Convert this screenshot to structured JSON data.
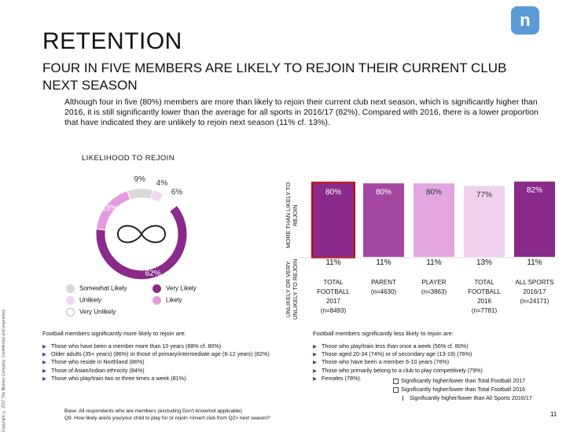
{
  "logo_glyph": "n",
  "title": "RETENTION",
  "subtitle": "FOUR IN FIVE MEMBERS ARE LIKELY TO REJOIN THEIR CURRENT CLUB NEXT SEASON",
  "intro": "Although four in five (80%) members are more than likely to rejoin their current club next season, which is significantly higher than 2016, it is still significantly lower than the average for all sports in 2016/17 (82%). Compared with 2016, there is a lower proportion that have indicated they are unlikely to rejoin next season (11% cf. 13%).",
  "copyright": "Copyright © 2017 The Nielsen Company. Confidential and proprietary.",
  "colors": {
    "very_likely": "#8a2a8a",
    "likely": "#e39be0",
    "somewhat_likely": "#d9d9d9",
    "unlikely": "#f2d7f1",
    "very_unlikely": "#ffffff",
    "highlight": "#c00000",
    "sig_low": "#c00000",
    "sig_high": "#4f7f3f"
  },
  "chart_data": [
    {
      "type": "pie",
      "title": "LIKELIHOOD TO REJOIN",
      "donut": true,
      "slices": [
        {
          "label": "Very Likely",
          "value": 62,
          "display": "62%"
        },
        {
          "label": "Likely",
          "value": 18,
          "display": "18%"
        },
        {
          "label": "Somewhat Likely",
          "value": 9,
          "display": "9%"
        },
        {
          "label": "Unlikely",
          "value": 4,
          "display": "4%"
        },
        {
          "label": "Very Unlikely",
          "value": 6,
          "display": "6%"
        }
      ],
      "legend": [
        "Somewhat Likely",
        "Very Likely",
        "Unlikely",
        "Likely",
        "Very Unlikely"
      ]
    },
    {
      "type": "bar",
      "categories": [
        "TOTAL FOOTBALL 2017 (n=8493)",
        "PARENT (n=4630)",
        "PLAYER (n=3863)",
        "TOTAL FOOTBALL 2016 (n=7781)",
        "ALL SPORTS 2016/17 (n=24171)"
      ],
      "series": [
        {
          "name": "MORE THAN LIKELY TO REJOIN",
          "values": [
            80,
            80,
            80,
            77,
            82
          ],
          "labels": [
            "80%",
            "80%",
            "80%",
            "77%",
            "82%"
          ]
        },
        {
          "name": "UNLIKELY OR VERY UNLIKELY TO REJOIN",
          "values": [
            11,
            11,
            11,
            13,
            11
          ],
          "labels": [
            "11%",
            "11%",
            "11%",
            "13%",
            "11%"
          ]
        }
      ]
    }
  ],
  "bar_labels": {
    "more": "MORE THAN LIKELY TO REJOIN",
    "unlikely": "UNLIKELY OR VERY UNLIKELY TO REJOIN"
  },
  "categories_display": [
    {
      "l1": "TOTAL",
      "l2": "FOOTBALL",
      "l3": "2017",
      "l4": "(n=8493)"
    },
    {
      "l1": "PARENT",
      "l2": "(n=4630)",
      "l3": "",
      "l4": ""
    },
    {
      "l1": "PLAYER",
      "l2": "(n=3863)",
      "l3": "",
      "l4": ""
    },
    {
      "l1": "TOTAL",
      "l2": "FOOTBALL",
      "l3": "2016",
      "l4": "(n=7781)"
    },
    {
      "l1": "ALL SPORTS",
      "l2": "2016/17",
      "l3": "(n=24171)",
      "l4": ""
    }
  ],
  "left_head": "Football members significantly more likely to rejoin are:",
  "left_bullets": [
    "Those who have been a member more than 10 years (88% cf. 80%)",
    "Older adults (35+ years) (86%) or those of primary/intermediate age (6-12 years) (82%)",
    "Those who reside in Northland (86%)",
    "Those of Asian/Indian ethnicity (84%)",
    "Those who play/train two or three times a week (81%)."
  ],
  "right_head": "Football members significantly less likely to rejoin are:",
  "right_bullets": [
    "Those who play/train less than once a week (56% cf. 80%)",
    "Those aged 20-34 (74%) or of secondary age (13-19) (76%)",
    "Those who have been a member 6-10 years (76%)",
    "Those who primarily belong to a club to play competitively (79%)",
    "Females (78%)."
  ],
  "key": {
    "k1": "Significantly higher/lower than Total Football 2017",
    "k2": "Significantly higher/lower than Total Football 2016",
    "k3": "Significantly higher/lower than All Sports 2016/17"
  },
  "base_line1": "Base: All respondents who are members (excluding Don't know/not applicable)",
  "base_line2": "Q9. How likely are/is you/your child to play for or rejoin <insert club from Q2> next season?",
  "page_number": "11"
}
